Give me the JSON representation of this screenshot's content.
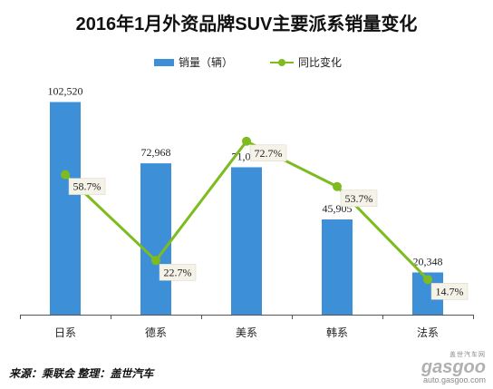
{
  "chart_data": {
    "type": "bar",
    "title": "2016年1月外资品牌SUV主要派系销量变化",
    "categories": [
      "日系",
      "德系",
      "美系",
      "韩系",
      "法系"
    ],
    "series": [
      {
        "name": "销量（辆）",
        "type": "bar",
        "values": [
          102520,
          72968,
          71075,
          45905,
          20348
        ],
        "labels": [
          "102,520",
          "72,968",
          "71,075",
          "45,905",
          "20,348"
        ],
        "color": "#3d8fd8"
      },
      {
        "name": "同比变化",
        "type": "line",
        "values": [
          58.7,
          22.7,
          72.7,
          53.7,
          14.7
        ],
        "labels": [
          "58.7%",
          "22.7%",
          "72.7%",
          "53.7%",
          "14.7%"
        ],
        "color": "#7dbb1f"
      }
    ],
    "bar_ylim": [
      0,
      115000
    ],
    "line_ylim": [
      0,
      100
    ],
    "legend": "top-center",
    "grid": false
  },
  "footer": {
    "source": "来源：乘联会   整理：盖世汽车"
  },
  "logo": {
    "top": "盖世汽车网",
    "main": "gasgoo",
    "url": "auto.gasgoo.com"
  }
}
